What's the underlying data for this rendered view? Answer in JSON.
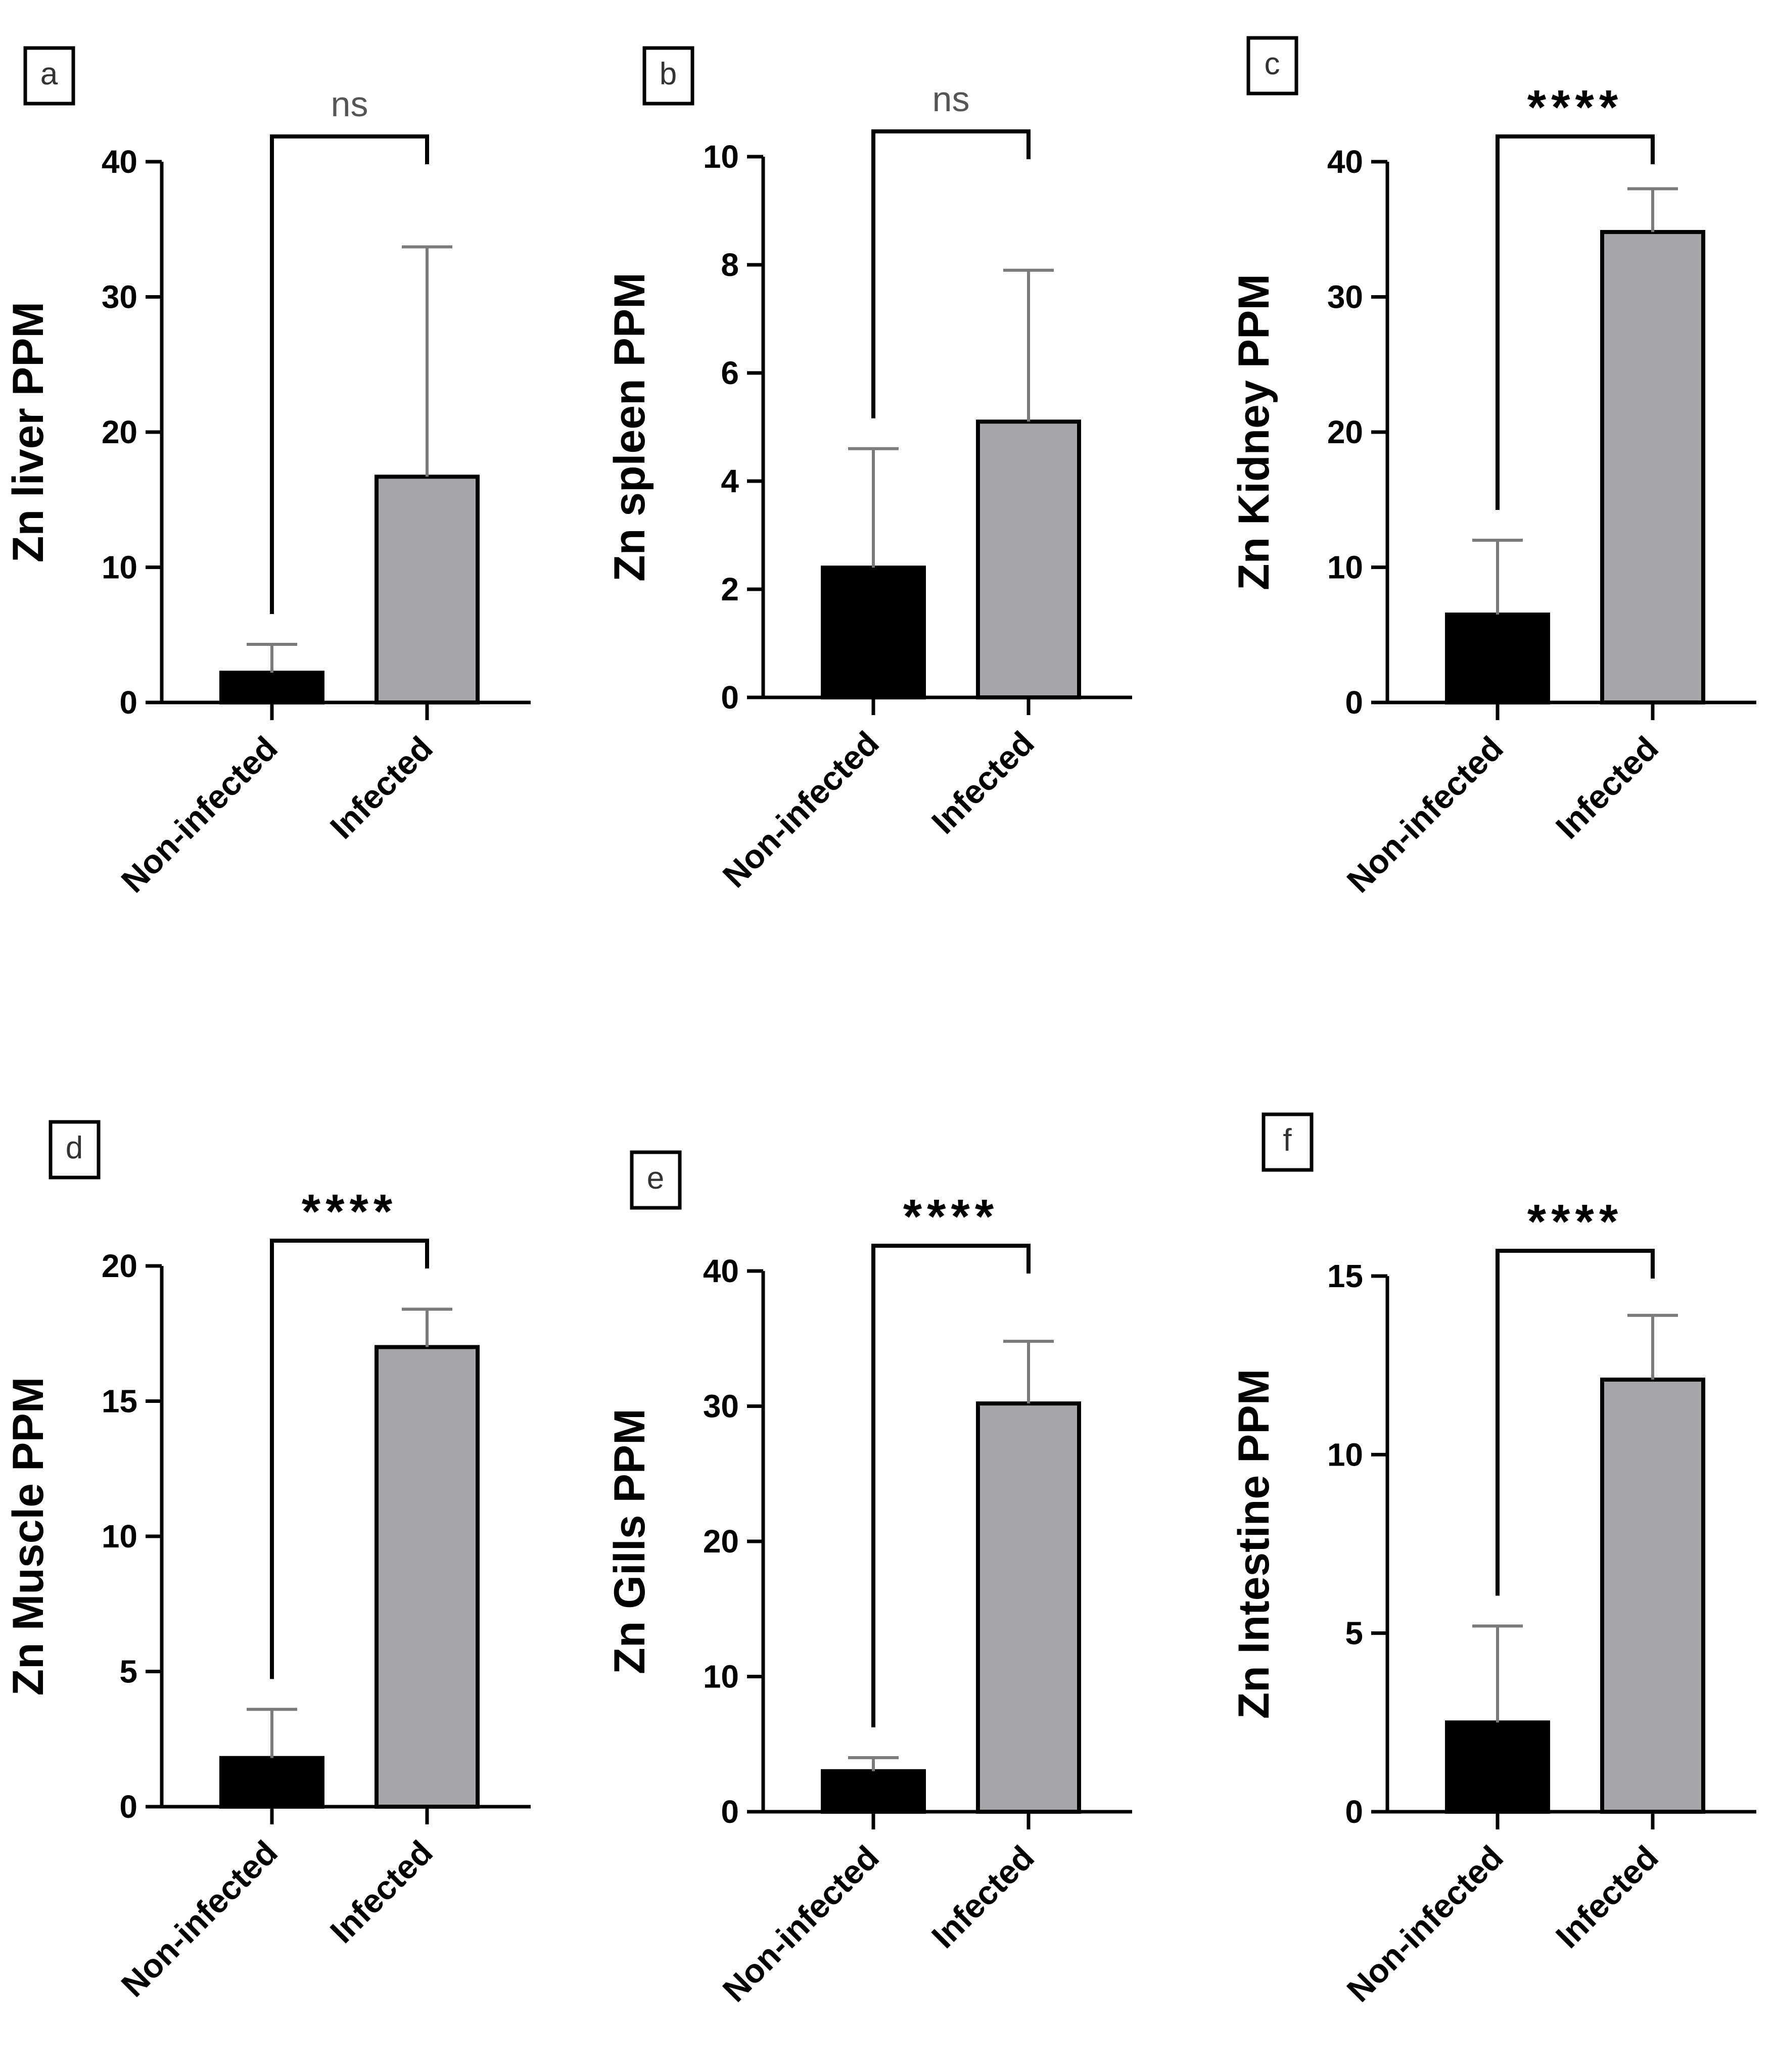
{
  "colors": {
    "noninfected_fill": "#000000",
    "infected_fill": "#a7a6ab",
    "axis": "#000000",
    "error_bar": "#7a7a7a"
  },
  "chart_data": [
    {
      "panel": "a",
      "type": "bar",
      "ylabel": "Zn liver PPM",
      "categories": [
        "Non-infected",
        "Infected"
      ],
      "values": [
        2.2,
        16.7
      ],
      "errors": [
        2.1,
        17.0
      ],
      "ylim": [
        0,
        40
      ],
      "yticks": [
        0,
        10,
        20,
        30,
        40
      ],
      "significance": "ns"
    },
    {
      "panel": "b",
      "type": "bar",
      "ylabel": "Zn spleen PPM",
      "categories": [
        "Non-infected",
        "Infected"
      ],
      "values": [
        2.4,
        5.1
      ],
      "errors": [
        2.2,
        2.8
      ],
      "ylim": [
        0,
        10
      ],
      "yticks": [
        0,
        2,
        4,
        6,
        8,
        10
      ],
      "significance": "ns"
    },
    {
      "panel": "c",
      "type": "bar",
      "ylabel": "Zn Kidney PPM",
      "categories": [
        "Non-infected",
        "Infected"
      ],
      "values": [
        6.5,
        34.8
      ],
      "errors": [
        5.5,
        3.2
      ],
      "ylim": [
        0,
        40
      ],
      "yticks": [
        0,
        10,
        20,
        30,
        40
      ],
      "significance": "****"
    },
    {
      "panel": "d",
      "type": "bar",
      "ylabel": "Zn Muscle PPM",
      "categories": [
        "Non-infected",
        "Infected"
      ],
      "values": [
        1.8,
        17.0
      ],
      "errors": [
        1.8,
        1.4
      ],
      "ylim": [
        0,
        20
      ],
      "yticks": [
        0,
        5,
        10,
        15,
        20
      ],
      "significance": "****"
    },
    {
      "panel": "e",
      "type": "bar",
      "ylabel": "Zn Gills PPM",
      "categories": [
        "Non-infected",
        "Infected"
      ],
      "values": [
        3.0,
        30.2
      ],
      "errors": [
        1.0,
        4.6
      ],
      "ylim": [
        0,
        40
      ],
      "yticks": [
        0,
        10,
        20,
        30,
        40
      ],
      "significance": "****"
    },
    {
      "panel": "f",
      "type": "bar",
      "ylabel": "Zn Intestine PPM",
      "categories": [
        "Non-infected",
        "Infected"
      ],
      "values": [
        2.5,
        12.1
      ],
      "errors": [
        2.7,
        1.8
      ],
      "ylim": [
        0,
        15
      ],
      "yticks": [
        0,
        5,
        10,
        15
      ],
      "significance": "****"
    }
  ]
}
